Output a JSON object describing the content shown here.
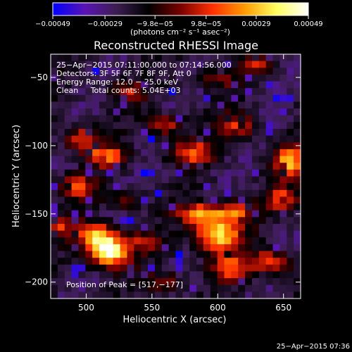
{
  "chart_data": {
    "type": "heatmap",
    "title": "Reconstructed RHESSI Image",
    "xlabel": "Heliocentric X (arcsec)",
    "ylabel": "Heliocentric Y (arcsec)",
    "xlim": [
      473,
      663
    ],
    "ylim": [
      -212,
      -33
    ],
    "xticks": [
      500,
      550,
      600,
      650
    ],
    "xtick_labels": [
      "500",
      "550",
      "600",
      "650"
    ],
    "yticks": [
      -50,
      -100,
      -150,
      -200
    ],
    "ytick_labels": [
      "−50",
      "−100",
      "−150",
      "−200"
    ],
    "colorbar": {
      "range": [
        -0.00049,
        0.00049
      ],
      "ticks": [
        -0.00049,
        -0.00029,
        -9.8e-05,
        9.8e-05,
        0.00029,
        0.00049
      ],
      "tick_labels": [
        "−0.00049",
        "−0.00029",
        "−9.8e−05",
        "9.8e−05",
        "0.00029",
        "0.00049"
      ],
      "label": "(photons cm⁻² s⁻¹ asec⁻²)",
      "colors": [
        "#0000ff",
        "#5a14b4",
        "#3c1e50",
        "#000000",
        "#7a0000",
        "#ff3000",
        "#ff9a00",
        "#ffff60",
        "#ffffff"
      ]
    },
    "annotations": [
      "25−Apr−2015 07:11:00.000 to 07:14:56.000",
      "Detectors: 3F 5F 6F 7F 8F 9F, Att 0",
      "Energy Range: 12.0 − 25.0 keV",
      "Clean     Total counts: 5.04E+03"
    ],
    "peak_label": "Position of Peak = [517,−177]",
    "peak": [
      517,
      -177
    ],
    "grid_size": [
      36,
      36
    ],
    "sources": [
      {
        "x": 517,
        "y": -177,
        "amp": 1.0,
        "sx": 11,
        "sy": 8
      },
      {
        "x": 507,
        "y": -165,
        "amp": 0.55,
        "sx": 10,
        "sy": 6
      },
      {
        "x": 600,
        "y": -165,
        "amp": 0.8,
        "sx": 12,
        "sy": 10
      },
      {
        "x": 585,
        "y": -150,
        "amp": 0.6,
        "sx": 10,
        "sy": 5
      },
      {
        "x": 612,
        "y": -148,
        "amp": 0.5,
        "sx": 9,
        "sy": 5
      },
      {
        "x": 655,
        "y": -112,
        "amp": 0.62,
        "sx": 9,
        "sy": 8
      },
      {
        "x": 650,
        "y": -140,
        "amp": 0.5,
        "sx": 9,
        "sy": 6
      },
      {
        "x": 640,
        "y": -185,
        "amp": 0.5,
        "sx": 11,
        "sy": 6
      },
      {
        "x": 610,
        "y": -190,
        "amp": 0.45,
        "sx": 10,
        "sy": 6
      },
      {
        "x": 580,
        "y": -105,
        "amp": 0.5,
        "sx": 12,
        "sy": 6
      },
      {
        "x": 617,
        "y": -85,
        "amp": 0.45,
        "sx": 10,
        "sy": 6
      },
      {
        "x": 560,
        "y": -85,
        "amp": 0.42,
        "sx": 10,
        "sy": 5
      },
      {
        "x": 497,
        "y": -95,
        "amp": 0.5,
        "sx": 10,
        "sy": 6
      },
      {
        "x": 515,
        "y": -108,
        "amp": 0.55,
        "sx": 10,
        "sy": 5
      },
      {
        "x": 492,
        "y": -130,
        "amp": 0.45,
        "sx": 9,
        "sy": 6
      },
      {
        "x": 530,
        "y": -140,
        "amp": 0.32,
        "sx": 9,
        "sy": 5
      },
      {
        "x": 545,
        "y": -170,
        "amp": 0.3,
        "sx": 8,
        "sy": 5
      },
      {
        "x": 480,
        "y": -160,
        "amp": 0.35,
        "sx": 8,
        "sy": 6
      },
      {
        "x": 530,
        "y": -60,
        "amp": 0.35,
        "sx": 10,
        "sy": 5
      },
      {
        "x": 600,
        "y": -50,
        "amp": 0.32,
        "sx": 10,
        "sy": 5
      },
      {
        "x": 630,
        "y": -40,
        "amp": 0.35,
        "sx": 8,
        "sy": 5
      },
      {
        "x": 560,
        "y": -200,
        "amp": 0.3,
        "sx": 10,
        "sy": 5
      }
    ]
  },
  "footer": {
    "timestamp": "25−Apr−2015 07:36"
  }
}
